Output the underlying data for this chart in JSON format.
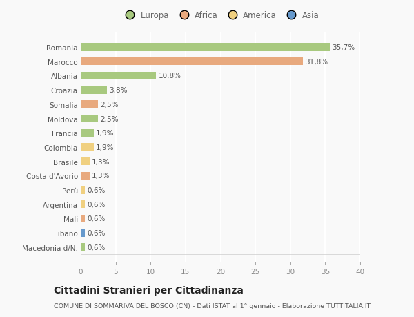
{
  "countries": [
    "Macedonia d/N.",
    "Libano",
    "Mali",
    "Argentina",
    "Perù",
    "Costa d'Avorio",
    "Brasile",
    "Colombia",
    "Francia",
    "Moldova",
    "Somalia",
    "Croazia",
    "Albania",
    "Marocco",
    "Romania"
  ],
  "values": [
    0.6,
    0.6,
    0.6,
    0.6,
    0.6,
    1.3,
    1.3,
    1.9,
    1.9,
    2.5,
    2.5,
    3.8,
    10.8,
    31.8,
    35.7
  ],
  "labels": [
    "0,6%",
    "0,6%",
    "0,6%",
    "0,6%",
    "0,6%",
    "1,3%",
    "1,3%",
    "1,9%",
    "1,9%",
    "2,5%",
    "2,5%",
    "3,8%",
    "10,8%",
    "31,8%",
    "35,7%"
  ],
  "categories": [
    "Europa",
    "Africa",
    "America",
    "Asia"
  ],
  "continent": [
    "Europa",
    "Asia",
    "Africa",
    "America",
    "America",
    "Africa",
    "America",
    "America",
    "Europa",
    "Europa",
    "Africa",
    "Europa",
    "Europa",
    "Africa",
    "Europa"
  ],
  "colors": {
    "Europa": "#a8c97f",
    "Africa": "#e8a97e",
    "America": "#f0d080",
    "Asia": "#6699cc"
  },
  "legend_colors": [
    "#a8c97f",
    "#e8a97e",
    "#f0d080",
    "#6699cc"
  ],
  "xlim": [
    0,
    40
  ],
  "xticks": [
    0,
    5,
    10,
    15,
    20,
    25,
    30,
    35,
    40
  ],
  "title": "Cittadini Stranieri per Cittadinanza",
  "subtitle": "COMUNE DI SOMMARIVA DEL BOSCO (CN) - Dati ISTAT al 1° gennaio - Elaborazione TUTTITALIA.IT",
  "bg_color": "#f9f9f9",
  "grid_color": "#ffffff",
  "bar_height": 0.55,
  "label_fontsize": 7.5,
  "tick_fontsize": 7.5,
  "title_fontsize": 10,
  "subtitle_fontsize": 6.8
}
